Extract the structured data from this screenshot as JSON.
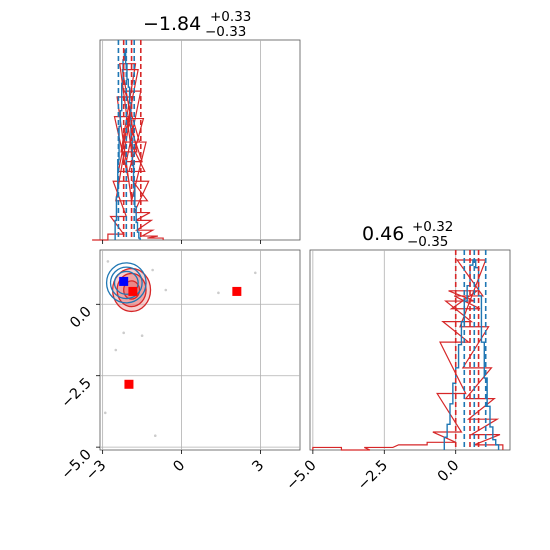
{
  "chart_data": {
    "type": "corner",
    "parameters": 2,
    "titles": [
      {
        "value": "−1.84",
        "plus": "+0.33",
        "minus": "−0.33"
      },
      {
        "value": "0.46",
        "plus": "+0.32",
        "minus": "−0.35"
      }
    ],
    "x_axis_ticks": {
      "param1": {
        "values": [
          -3,
          0,
          3
        ],
        "labels": [
          "−3",
          "0",
          "3"
        ]
      },
      "param2": {
        "values": [
          -5.0,
          -2.5,
          0.0
        ],
        "labels": [
          "−5.0",
          "−2.5",
          "0.0"
        ]
      }
    },
    "y_axis_ticks": {
      "param2": {
        "values": [
          0.0,
          -2.5,
          -5.0
        ],
        "labels": [
          "0.0",
          "−2.5",
          "−5.0"
        ]
      }
    },
    "ranges": {
      "param1": [
        -3.1,
        4.5
      ],
      "param2": [
        -5.1,
        1.9
      ]
    },
    "grid": true,
    "series": [
      {
        "color": "#1f77b4",
        "quantile_lines": {
          "param1": [
            -2.4,
            -2.1,
            -1.8
          ],
          "param2": [
            0.3,
            0.65,
            1.05
          ]
        },
        "hist_param1": [
          {
            "x": -2.5,
            "y": 0.1
          },
          {
            "x": -2.45,
            "y": 0.22
          },
          {
            "x": -2.4,
            "y": 0.41
          },
          {
            "x": -2.35,
            "y": 0.58
          },
          {
            "x": -2.3,
            "y": 0.66
          },
          {
            "x": -2.25,
            "y": 0.8
          },
          {
            "x": -2.2,
            "y": 0.92
          },
          {
            "x": -2.15,
            "y": 0.97
          },
          {
            "x": -2.1,
            "y": 0.9
          },
          {
            "x": -2.05,
            "y": 0.82
          },
          {
            "x": -2.0,
            "y": 0.78
          },
          {
            "x": -1.95,
            "y": 0.7
          },
          {
            "x": -1.9,
            "y": 0.52
          },
          {
            "x": -1.85,
            "y": 0.38
          },
          {
            "x": -1.8,
            "y": 0.27
          },
          {
            "x": -1.75,
            "y": 0.17
          },
          {
            "x": -1.7,
            "y": 0.09
          },
          {
            "x": -1.65,
            "y": 0.04
          },
          {
            "x": -1.6,
            "y": 0.01
          }
        ],
        "hist_param2": [
          {
            "x": -0.35,
            "y": 0.05
          },
          {
            "x": -0.25,
            "y": 0.1
          },
          {
            "x": -0.15,
            "y": 0.18
          },
          {
            "x": -0.05,
            "y": 0.26
          },
          {
            "x": 0.05,
            "y": 0.32
          },
          {
            "x": 0.15,
            "y": 0.41
          },
          {
            "x": 0.25,
            "y": 0.5
          },
          {
            "x": 0.35,
            "y": 0.58
          },
          {
            "x": 0.45,
            "y": 0.64
          },
          {
            "x": 0.55,
            "y": 0.72
          },
          {
            "x": 0.65,
            "y": 0.74
          },
          {
            "x": 0.75,
            "y": 0.71
          },
          {
            "x": 0.85,
            "y": 0.6
          },
          {
            "x": 0.95,
            "y": 0.42
          },
          {
            "x": 1.05,
            "y": 0.28
          },
          {
            "x": 1.15,
            "y": 0.17
          },
          {
            "x": 1.25,
            "y": 0.09
          },
          {
            "x": 1.35,
            "y": 0.04
          },
          {
            "x": 1.45,
            "y": 0.02
          }
        ],
        "contour_center": {
          "x": -2.1,
          "y": 0.75
        },
        "contour_radii": [
          {
            "rx": 0.45,
            "ry": 0.4
          },
          {
            "rx": 0.6,
            "ry": 0.55
          },
          {
            "rx": 0.75,
            "ry": 0.7
          }
        ],
        "marker": {
          "x": -2.2,
          "y": 0.8,
          "color": "#0000ff"
        }
      },
      {
        "color": "#d62728",
        "quantile_lines": {
          "param1": [
            -2.2,
            -1.9,
            -1.55
          ],
          "param2": [
            0.0,
            0.5,
            0.8
          ]
        },
        "hist_param1": [
          {
            "x": -3.1,
            "y": 0.0
          },
          {
            "x": -2.5,
            "y": 0.03
          },
          {
            "x": -2.4,
            "y": 0.12
          },
          {
            "x": -2.3,
            "y": 0.3
          },
          {
            "x": -2.25,
            "y": 0.63
          },
          {
            "x": -2.2,
            "y": 0.2
          },
          {
            "x": -2.15,
            "y": 0.73
          },
          {
            "x": -2.1,
            "y": 0.35
          },
          {
            "x": -2.05,
            "y": 0.9
          },
          {
            "x": -2.0,
            "y": 0.45
          },
          {
            "x": -1.95,
            "y": 0.87
          },
          {
            "x": -1.9,
            "y": 0.5
          },
          {
            "x": -1.85,
            "y": 0.76
          },
          {
            "x": -1.8,
            "y": 0.4
          },
          {
            "x": -1.75,
            "y": 0.62
          },
          {
            "x": -1.7,
            "y": 0.35
          },
          {
            "x": -1.65,
            "y": 0.5
          },
          {
            "x": -1.6,
            "y": 0.2
          },
          {
            "x": -1.55,
            "y": 0.3
          },
          {
            "x": -1.5,
            "y": 0.14
          },
          {
            "x": -1.45,
            "y": 0.1
          },
          {
            "x": -1.4,
            "y": 0.05
          },
          {
            "x": -1.2,
            "y": 0.02
          },
          {
            "x": -1.0,
            "y": 0.01
          }
        ],
        "hist_param2": [
          {
            "x": -4.5,
            "y": 0.01
          },
          {
            "x": -3.5,
            "y": 0.0
          },
          {
            "x": -2.7,
            "y": 0.01
          },
          {
            "x": -1.5,
            "y": 0.02
          },
          {
            "x": -0.5,
            "y": 0.03
          },
          {
            "x": -0.3,
            "y": 0.07
          },
          {
            "x": -0.15,
            "y": 0.22
          },
          {
            "x": -0.05,
            "y": 0.42
          },
          {
            "x": 0.05,
            "y": 0.5
          },
          {
            "x": 0.15,
            "y": 0.58
          },
          {
            "x": 0.25,
            "y": 0.62
          },
          {
            "x": 0.35,
            "y": 0.55
          },
          {
            "x": 0.45,
            "y": 0.6
          },
          {
            "x": 0.55,
            "y": 0.74
          },
          {
            "x": 0.65,
            "y": 0.48
          },
          {
            "x": 0.75,
            "y": 0.32
          },
          {
            "x": 0.85,
            "y": 0.2
          },
          {
            "x": 0.95,
            "y": 0.12
          },
          {
            "x": 1.05,
            "y": 0.06
          },
          {
            "x": 1.15,
            "y": 0.02
          }
        ],
        "contour_center": {
          "x": -1.9,
          "y": 0.5
        },
        "contour_radii": [
          {
            "rx": 0.3,
            "ry": 0.32
          },
          {
            "rx": 0.55,
            "ry": 0.58
          },
          {
            "rx": 0.72,
            "ry": 0.75
          }
        ],
        "markers": [
          {
            "x": -1.85,
            "y": 0.45,
            "color": "#ff0000"
          },
          {
            "x": 2.1,
            "y": 0.45,
            "color": "#ff0000"
          },
          {
            "x": -2.0,
            "y": -2.8,
            "color": "#ff0000"
          }
        ]
      }
    ],
    "scatter_outliers": [
      {
        "x": -2.9,
        "y": -3.8
      },
      {
        "x": -2.5,
        "y": -1.6
      },
      {
        "x": -2.2,
        "y": -1.0
      },
      {
        "x": -1.5,
        "y": -1.1
      },
      {
        "x": -1.0,
        "y": -4.6
      },
      {
        "x": 2.8,
        "y": 1.1
      },
      {
        "x": 1.4,
        "y": 0.4
      },
      {
        "x": -0.6,
        "y": 0.5
      },
      {
        "x": -2.8,
        "y": 1.5
      },
      {
        "x": -1.1,
        "y": 1.2
      }
    ]
  }
}
